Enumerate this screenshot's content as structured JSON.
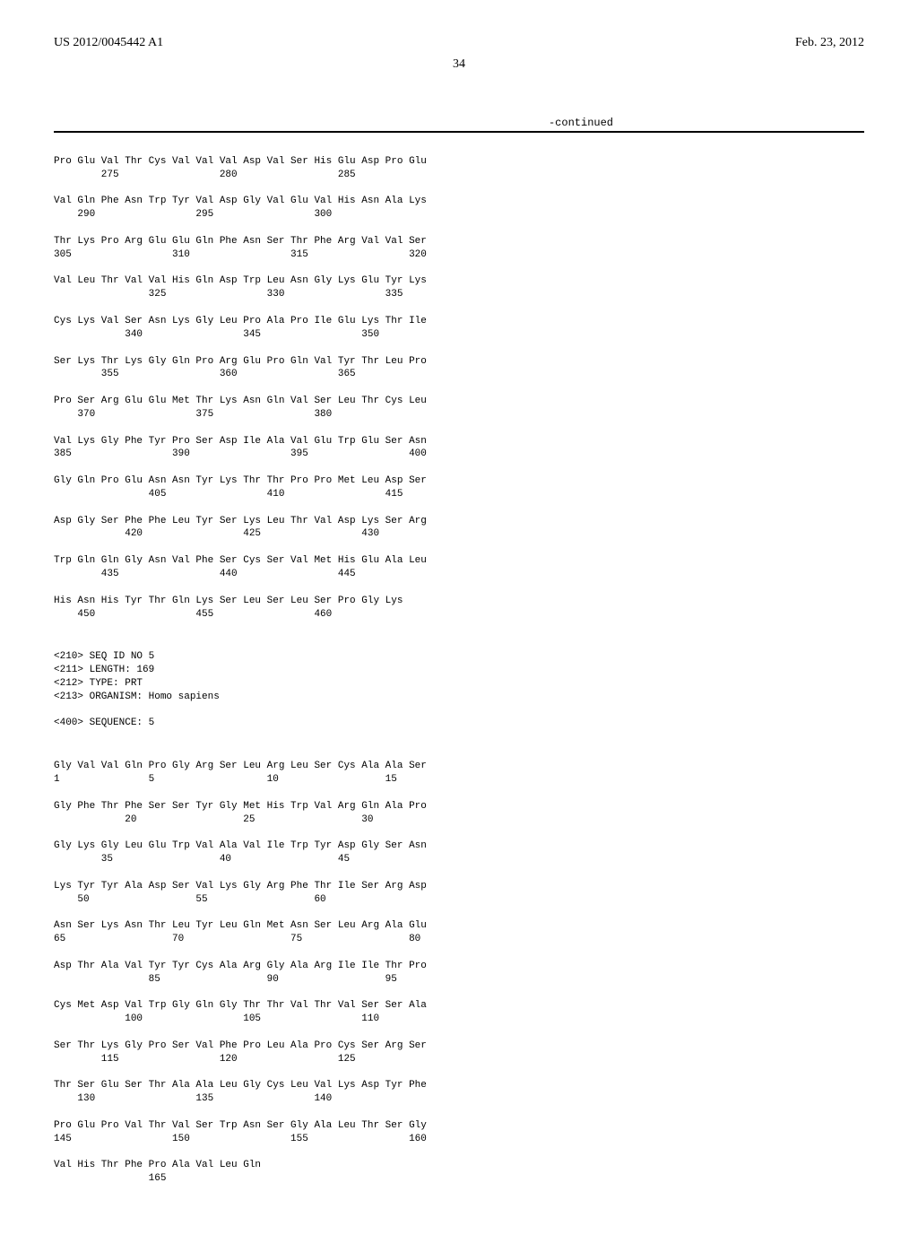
{
  "header": {
    "doc_number": "US 2012/0045442 A1",
    "date": "Feb. 23, 2012",
    "page": "34",
    "continued": "-continued"
  },
  "sequences": {
    "seq1": {
      "rows": [
        {
          "aa": "Pro Glu Val Thr Cys Val Val Val Asp Val Ser His Glu Asp Pro Glu",
          "num": "        275                 280                 285"
        },
        {
          "aa": "Val Gln Phe Asn Trp Tyr Val Asp Gly Val Glu Val His Asn Ala Lys",
          "num": "    290                 295                 300"
        },
        {
          "aa": "Thr Lys Pro Arg Glu Glu Gln Phe Asn Ser Thr Phe Arg Val Val Ser",
          "num": "305                 310                 315                 320"
        },
        {
          "aa": "Val Leu Thr Val Val His Gln Asp Trp Leu Asn Gly Lys Glu Tyr Lys",
          "num": "                325                 330                 335"
        },
        {
          "aa": "Cys Lys Val Ser Asn Lys Gly Leu Pro Ala Pro Ile Glu Lys Thr Ile",
          "num": "            340                 345                 350"
        },
        {
          "aa": "Ser Lys Thr Lys Gly Gln Pro Arg Glu Pro Gln Val Tyr Thr Leu Pro",
          "num": "        355                 360                 365"
        },
        {
          "aa": "Pro Ser Arg Glu Glu Met Thr Lys Asn Gln Val Ser Leu Thr Cys Leu",
          "num": "    370                 375                 380"
        },
        {
          "aa": "Val Lys Gly Phe Tyr Pro Ser Asp Ile Ala Val Glu Trp Glu Ser Asn",
          "num": "385                 390                 395                 400"
        },
        {
          "aa": "Gly Gln Pro Glu Asn Asn Tyr Lys Thr Thr Pro Pro Met Leu Asp Ser",
          "num": "                405                 410                 415"
        },
        {
          "aa": "Asp Gly Ser Phe Phe Leu Tyr Ser Lys Leu Thr Val Asp Lys Ser Arg",
          "num": "            420                 425                 430"
        },
        {
          "aa": "Trp Gln Gln Gly Asn Val Phe Ser Cys Ser Val Met His Glu Ala Leu",
          "num": "        435                 440                 445"
        },
        {
          "aa": "His Asn His Tyr Thr Gln Lys Ser Leu Ser Leu Ser Pro Gly Lys",
          "num": "    450                 455                 460"
        }
      ]
    },
    "meta": [
      "<210> SEQ ID NO 5",
      "<211> LENGTH: 169",
      "<212> TYPE: PRT",
      "<213> ORGANISM: Homo sapiens",
      "",
      "<400> SEQUENCE: 5"
    ],
    "seq2": {
      "rows": [
        {
          "aa": "Gly Val Val Gln Pro Gly Arg Ser Leu Arg Leu Ser Cys Ala Ala Ser",
          "num": "1               5                   10                  15"
        },
        {
          "aa": "Gly Phe Thr Phe Ser Ser Tyr Gly Met His Trp Val Arg Gln Ala Pro",
          "num": "            20                  25                  30"
        },
        {
          "aa": "Gly Lys Gly Leu Glu Trp Val Ala Val Ile Trp Tyr Asp Gly Ser Asn",
          "num": "        35                  40                  45"
        },
        {
          "aa": "Lys Tyr Tyr Ala Asp Ser Val Lys Gly Arg Phe Thr Ile Ser Arg Asp",
          "num": "    50                  55                  60"
        },
        {
          "aa": "Asn Ser Lys Asn Thr Leu Tyr Leu Gln Met Asn Ser Leu Arg Ala Glu",
          "num": "65                  70                  75                  80"
        },
        {
          "aa": "Asp Thr Ala Val Tyr Tyr Cys Ala Arg Gly Ala Arg Ile Ile Thr Pro",
          "num": "                85                  90                  95"
        },
        {
          "aa": "Cys Met Asp Val Trp Gly Gln Gly Thr Thr Val Thr Val Ser Ser Ala",
          "num": "            100                 105                 110"
        },
        {
          "aa": "Ser Thr Lys Gly Pro Ser Val Phe Pro Leu Ala Pro Cys Ser Arg Ser",
          "num": "        115                 120                 125"
        },
        {
          "aa": "Thr Ser Glu Ser Thr Ala Ala Leu Gly Cys Leu Val Lys Asp Tyr Phe",
          "num": "    130                 135                 140"
        },
        {
          "aa": "Pro Glu Pro Val Thr Val Ser Trp Asn Ser Gly Ala Leu Thr Ser Gly",
          "num": "145                 150                 155                 160"
        },
        {
          "aa": "Val His Thr Phe Pro Ala Val Leu Gln",
          "num": "                165"
        }
      ]
    }
  }
}
